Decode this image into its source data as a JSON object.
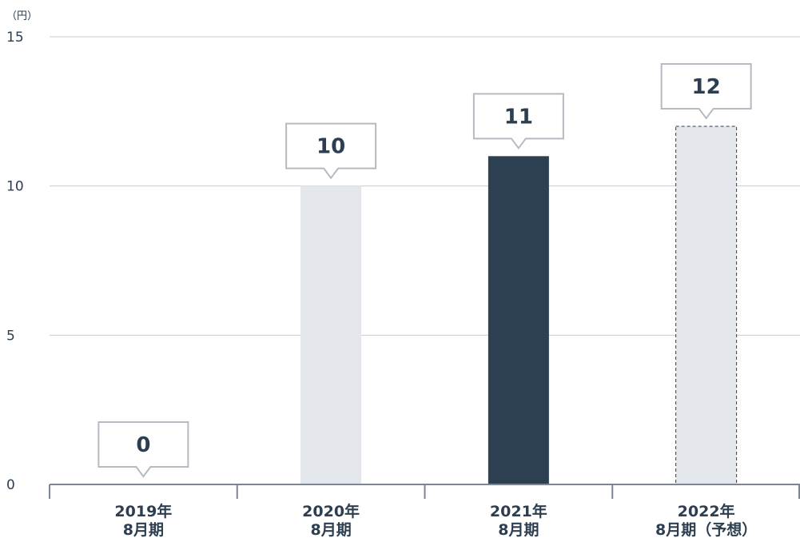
{
  "chart_data": {
    "type": "bar",
    "unit": "（円）",
    "ylim": [
      0,
      15
    ],
    "yticks": [
      0,
      5,
      10,
      15
    ],
    "grid": true,
    "categories": [
      [
        "2019年",
        "8月期"
      ],
      [
        "2020年",
        "8月期"
      ],
      [
        "2021年",
        "8月期"
      ],
      [
        "2022年",
        "8月期（予想）"
      ]
    ],
    "values": [
      0,
      10,
      11,
      12
    ],
    "data_labels": [
      "0",
      "10",
      "11",
      "12"
    ],
    "bar_styles": [
      "light",
      "light",
      "dark",
      "forecast-dashed"
    ],
    "colors": {
      "light": "#e3e6ea",
      "dark": "#2d4051",
      "forecast_border": "#2d3e50",
      "grid": "#c8ccd1",
      "axis": "#7d8590",
      "callout_border": "#b5bac1"
    }
  }
}
